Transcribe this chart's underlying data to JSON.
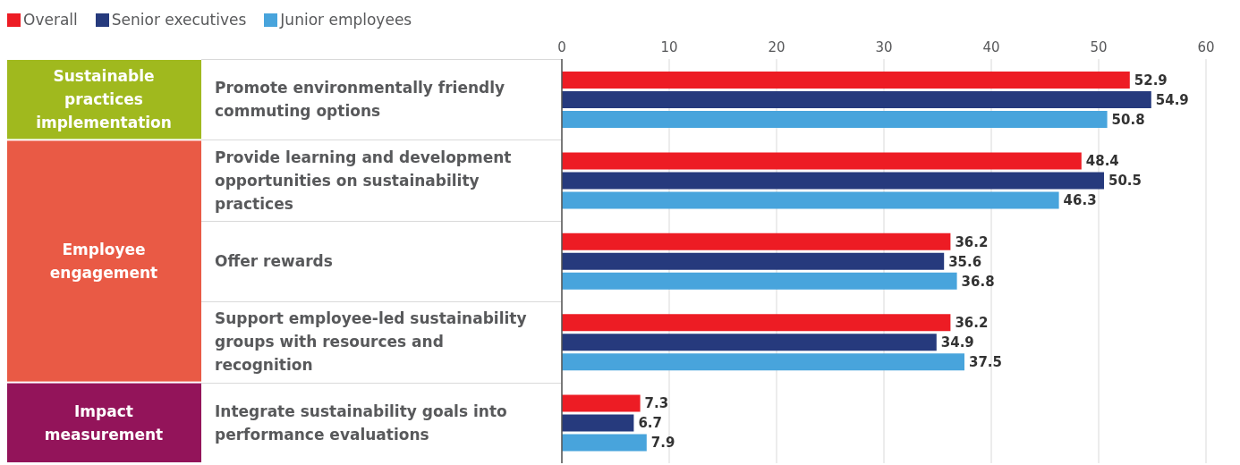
{
  "chart_data": {
    "type": "bar",
    "orientation": "horizontal",
    "categories": [
      "Promote environmentally friendly commuting options",
      "Provide learning and development opportunities on sustainability practices",
      "Offer rewards",
      "Support employee-led sustainability groups with resources and recognition",
      "Integrate sustainability goals into performance evaluations"
    ],
    "series": [
      {
        "name": "Overall",
        "color": "#ed1c24",
        "values": [
          52.9,
          48.4,
          36.2,
          36.2,
          7.3
        ]
      },
      {
        "name": "Senior executives",
        "color": "#263a7d",
        "values": [
          54.9,
          50.5,
          35.6,
          34.9,
          6.7
        ]
      },
      {
        "name": "Junior employees",
        "color": "#48a4dc",
        "values": [
          50.8,
          46.3,
          36.8,
          37.5,
          7.9
        ]
      }
    ],
    "annotations": [
      "Sustainable practices implementation",
      "Employee engagement",
      "Impact measurement"
    ],
    "xlim": [
      0,
      60
    ],
    "xticks": [
      0,
      10,
      20,
      30,
      40,
      50,
      60
    ],
    "grid": "x",
    "legend": "top left",
    "data_labels": true
  }
}
